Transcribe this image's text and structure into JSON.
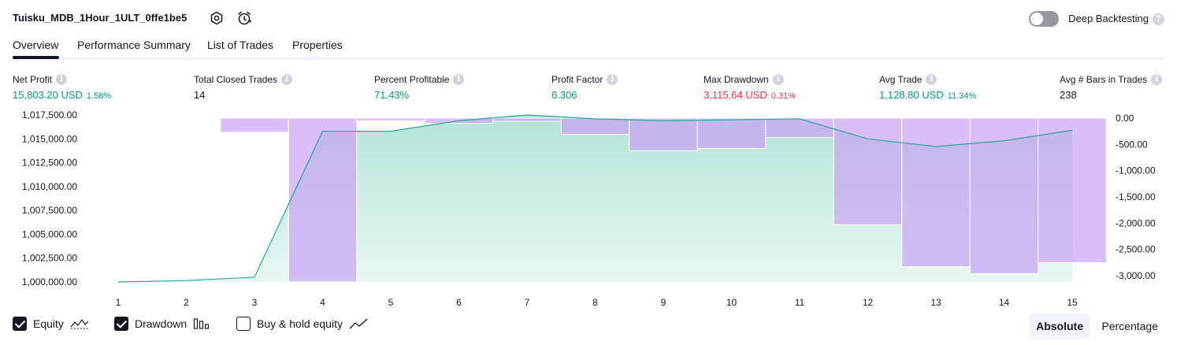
{
  "header": {
    "strategy_name": "Tuisku_MDB_1Hour_1ULT_0ffe1be5",
    "deep_backtesting_label": "Deep Backtesting",
    "deep_backtesting_enabled": false,
    "help_glyph": "?"
  },
  "tabs": [
    {
      "label": "Overview",
      "active": true
    },
    {
      "label": "Performance Summary",
      "active": false
    },
    {
      "label": "List of Trades",
      "active": false
    },
    {
      "label": "Properties",
      "active": false
    }
  ],
  "info_glyph": "i",
  "metrics": [
    {
      "label": "Net Profit",
      "value": "15,803.20 USD",
      "pct": "1.58%",
      "color": "green"
    },
    {
      "label": "Total Closed Trades",
      "value": "14",
      "pct": "",
      "color": "plain"
    },
    {
      "label": "Percent Profitable",
      "value": "71.43%",
      "pct": "",
      "color": "green"
    },
    {
      "label": "Profit Factor",
      "value": "6.306",
      "pct": "",
      "color": "green"
    },
    {
      "label": "Max Drawdown",
      "value": "3,115.64 USD",
      "pct": "0.31%",
      "color": "red"
    },
    {
      "label": "Avg Trade",
      "value": "1,128.80 USD",
      "pct": "11.34%",
      "color": "green"
    },
    {
      "label": "Avg # Bars in Trades",
      "value": "238",
      "pct": "",
      "color": "plain"
    }
  ],
  "chart_data": {
    "type": "line",
    "x": [
      1,
      2,
      3,
      4,
      5,
      6,
      7,
      8,
      9,
      10,
      11,
      12,
      13,
      14,
      15
    ],
    "left_axis_ticks": [
      "1,017,500.00",
      "1,015,000.00",
      "1,012,500.00",
      "1,010,000.00",
      "1,007,500.00",
      "1,005,000.00",
      "1,002,500.00",
      "1,000,000.00"
    ],
    "left_ylim": [
      1000000,
      1017500
    ],
    "right_axis_ticks": [
      "0.00",
      "-500.00",
      "-1,000.00",
      "-1,500.00",
      "-2,000.00",
      "-2,500.00",
      "-3,000.00"
    ],
    "right_ylim": [
      -3000,
      0
    ],
    "series": [
      {
        "name": "Equity",
        "kind": "area-line",
        "values": [
          1000000,
          1000150,
          1000500,
          1015800,
          1015800,
          1016900,
          1017500,
          1017100,
          1016900,
          1017000,
          1017100,
          1015000,
          1014200,
          1014800,
          1015900
        ]
      },
      {
        "name": "Drawdown",
        "kind": "bars",
        "bars": [
          {
            "from": 0.5,
            "to": 1.5,
            "value": -10
          },
          {
            "from": 1.5,
            "to": 2.5,
            "value": -10
          },
          {
            "from": 2.5,
            "to": 3.5,
            "value": -270
          },
          {
            "from": 3.5,
            "to": 4.5,
            "value": -3115.64
          },
          {
            "from": 4.5,
            "to": 5.5,
            "value": -50
          },
          {
            "from": 5.5,
            "to": 6.5,
            "value": -100
          },
          {
            "from": 6.5,
            "to": 7.5,
            "value": -60
          },
          {
            "from": 7.5,
            "to": 8.5,
            "value": -310
          },
          {
            "from": 8.5,
            "to": 9.5,
            "value": -620
          },
          {
            "from": 9.5,
            "to": 10.5,
            "value": -580
          },
          {
            "from": 10.5,
            "to": 11.5,
            "value": -370
          },
          {
            "from": 11.5,
            "to": 12.5,
            "value": -2030
          },
          {
            "from": 12.5,
            "to": 13.5,
            "value": -2830
          },
          {
            "from": 13.5,
            "to": 14.5,
            "value": -2960
          },
          {
            "from": 14.5,
            "to": 15.5,
            "value": -2750
          }
        ]
      }
    ],
    "colors": {
      "equity_line": "#26a69a",
      "equity_fill": "#a5dfd0",
      "drawdown_fill": "#c9a3f5",
      "overlap_fill": "#a5b1e6"
    }
  },
  "legend": {
    "items": [
      {
        "label": "Equity",
        "checked": true,
        "icon": "equity-line-icon"
      },
      {
        "label": "Drawdown",
        "checked": true,
        "icon": "drawdown-bars-icon"
      },
      {
        "label": "Buy & hold equity",
        "checked": false,
        "icon": "buy-hold-line-icon"
      }
    ],
    "mode_absolute": "Absolute",
    "mode_percentage": "Percentage",
    "active_mode": "Absolute"
  }
}
